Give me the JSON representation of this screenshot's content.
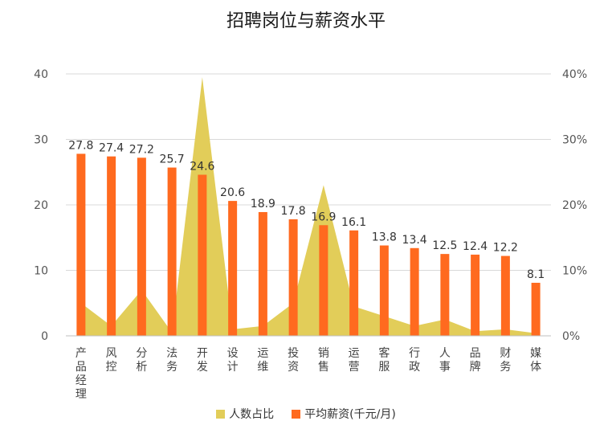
{
  "chart_data": {
    "type": "bar",
    "title": "招聘岗位与薪资水平",
    "categories": [
      "产品经理",
      "风控",
      "分析",
      "法务",
      "开发",
      "设计",
      "运维",
      "投资",
      "销售",
      "运营",
      "客服",
      "行政",
      "人事",
      "品牌",
      "财务",
      "媒体"
    ],
    "series": [
      {
        "name": "人数占比",
        "type": "area",
        "axis": "right",
        "color": "#E2CD59",
        "values": [
          0.05,
          0.015,
          0.07,
          0.005,
          0.395,
          0.01,
          0.015,
          0.05,
          0.23,
          0.045,
          0.03,
          0.015,
          0.025,
          0.007,
          0.01,
          0.004
        ]
      },
      {
        "name": "平均薪资(千元/月)",
        "type": "bar",
        "axis": "left",
        "color": "#FF6A1F",
        "values": [
          27.8,
          27.4,
          27.2,
          25.7,
          24.6,
          20.6,
          18.9,
          17.8,
          16.9,
          16.1,
          13.8,
          13.4,
          12.5,
          12.4,
          12.2,
          8.1
        ]
      }
    ],
    "y_left": {
      "ticks": [
        "0",
        "10",
        "20",
        "30",
        "40"
      ],
      "ylim": [
        0,
        40
      ]
    },
    "y_right": {
      "ticks": [
        "0%",
        "10%",
        "20%",
        "30%",
        "40%"
      ],
      "ylim": [
        0,
        0.4
      ]
    },
    "grid": true,
    "legend_position": "bottom"
  }
}
